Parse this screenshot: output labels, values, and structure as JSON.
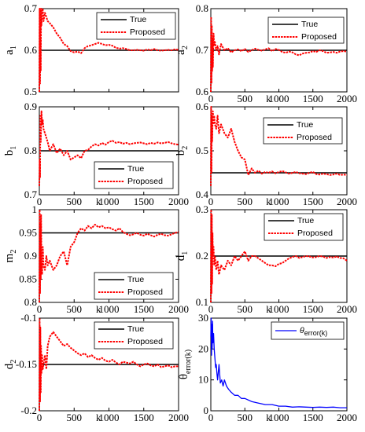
{
  "chart_data": [
    {
      "type": "line",
      "ylabel_main": "a",
      "ylabel_sub": "1",
      "ylim": [
        0.5,
        0.7
      ],
      "yticks": [
        "0.5",
        "0.6",
        "0.7"
      ],
      "xticks": [],
      "xlim": [
        0,
        2000
      ],
      "true_value": 0.6,
      "legend": [
        "True",
        "Proposed"
      ],
      "legend_position": "top-right",
      "series": [
        {
          "name": "Proposed",
          "x": [
            0,
            5,
            10,
            15,
            20,
            25,
            30,
            40,
            50,
            60,
            80,
            100,
            120,
            150,
            200,
            250,
            300,
            350,
            400,
            450,
            500,
            550,
            600,
            650,
            700,
            750,
            800,
            850,
            900,
            950,
            1000,
            1050,
            1100,
            1150,
            1200,
            1250,
            1300,
            1350,
            1400,
            1450,
            1500,
            1550,
            1600,
            1650,
            1700,
            1750,
            1800,
            1850,
            1900,
            1950,
            2000
          ],
          "y": [
            0.5,
            0.7,
            0.52,
            0.68,
            0.55,
            0.7,
            0.66,
            0.69,
            0.7,
            0.67,
            0.69,
            0.68,
            0.67,
            0.665,
            0.655,
            0.64,
            0.63,
            0.615,
            0.61,
            0.598,
            0.595,
            0.597,
            0.593,
            0.605,
            0.61,
            0.612,
            0.615,
            0.618,
            0.615,
            0.612,
            0.613,
            0.611,
            0.606,
            0.604,
            0.605,
            0.603,
            0.6,
            0.6,
            0.601,
            0.6,
            0.599,
            0.602,
            0.6,
            0.603,
            0.6,
            0.599,
            0.6,
            0.601,
            0.6,
            0.602,
            0.601
          ]
        }
      ]
    },
    {
      "type": "line",
      "ylabel_main": "a",
      "ylabel_sub": "2",
      "ylim": [
        0.6,
        0.8
      ],
      "yticks": [
        "0.6",
        "0.7",
        "0.8"
      ],
      "xticks": [
        "0",
        "500",
        "1000",
        "1500",
        "2000"
      ],
      "xlim": [
        0,
        2000
      ],
      "true_value": 0.7,
      "legend": [
        "True",
        "Proposed"
      ],
      "legend_position": "top-right",
      "series": [
        {
          "name": "Proposed",
          "x": [
            0,
            5,
            10,
            15,
            20,
            25,
            30,
            40,
            50,
            60,
            80,
            100,
            120,
            150,
            200,
            250,
            300,
            350,
            400,
            450,
            500,
            550,
            600,
            650,
            700,
            750,
            800,
            850,
            900,
            950,
            1000,
            1050,
            1100,
            1150,
            1200,
            1250,
            1300,
            1350,
            1400,
            1450,
            1500,
            1550,
            1600,
            1650,
            1700,
            1750,
            1800,
            1850,
            1900,
            1950,
            2000
          ],
          "y": [
            0.6,
            0.78,
            0.62,
            0.76,
            0.65,
            0.73,
            0.66,
            0.74,
            0.71,
            0.72,
            0.7,
            0.71,
            0.69,
            0.715,
            0.7,
            0.705,
            0.695,
            0.7,
            0.702,
            0.698,
            0.703,
            0.696,
            0.7,
            0.704,
            0.701,
            0.699,
            0.702,
            0.705,
            0.698,
            0.703,
            0.701,
            0.696,
            0.694,
            0.697,
            0.695,
            0.69,
            0.688,
            0.692,
            0.694,
            0.695,
            0.698,
            0.696,
            0.7,
            0.698,
            0.694,
            0.695,
            0.696,
            0.694,
            0.697,
            0.698,
            0.697
          ]
        }
      ]
    },
    {
      "type": "line",
      "ylabel_main": "b",
      "ylabel_sub": "1",
      "ylim": [
        0.7,
        0.9
      ],
      "yticks": [
        "0.7",
        "0.8",
        "0.9"
      ],
      "xticks": [
        "0",
        "500",
        "1000",
        "1500",
        "2000"
      ],
      "xlim": [
        0,
        2000
      ],
      "true_value": 0.8,
      "legend": [
        "True",
        "Proposed"
      ],
      "legend_position": "bottom-right",
      "series": [
        {
          "name": "Proposed",
          "x": [
            0,
            5,
            10,
            15,
            20,
            30,
            40,
            50,
            60,
            80,
            100,
            120,
            150,
            200,
            250,
            300,
            350,
            400,
            450,
            500,
            550,
            600,
            650,
            700,
            750,
            800,
            850,
            900,
            950,
            1000,
            1050,
            1100,
            1150,
            1200,
            1250,
            1300,
            1350,
            1400,
            1450,
            1500,
            1550,
            1600,
            1650,
            1700,
            1750,
            1800,
            1850,
            1900,
            1950,
            2000
          ],
          "y": [
            0.72,
            0.78,
            0.74,
            0.88,
            0.82,
            0.89,
            0.86,
            0.87,
            0.85,
            0.84,
            0.83,
            0.82,
            0.8,
            0.815,
            0.795,
            0.805,
            0.79,
            0.8,
            0.78,
            0.785,
            0.79,
            0.783,
            0.8,
            0.802,
            0.81,
            0.815,
            0.812,
            0.818,
            0.814,
            0.82,
            0.823,
            0.818,
            0.82,
            0.816,
            0.818,
            0.815,
            0.817,
            0.818,
            0.819,
            0.817,
            0.815,
            0.818,
            0.816,
            0.819,
            0.817,
            0.818,
            0.82,
            0.817,
            0.815,
            0.814
          ]
        }
      ]
    },
    {
      "type": "line",
      "ylabel_main": "b",
      "ylabel_sub": "2",
      "ylim": [
        0.4,
        0.6
      ],
      "yticks": [
        "0.4",
        "0.5",
        "0.6"
      ],
      "xticks": [
        "0",
        "500",
        "1000",
        "1500",
        "2000"
      ],
      "xlim": [
        0,
        2000
      ],
      "true_value": 0.45,
      "legend": [
        "True",
        "Proposed"
      ],
      "legend_position": "center-right",
      "series": [
        {
          "name": "Proposed",
          "x": [
            0,
            5,
            10,
            15,
            20,
            30,
            40,
            50,
            60,
            80,
            100,
            120,
            150,
            200,
            250,
            300,
            350,
            400,
            450,
            500,
            550,
            600,
            650,
            700,
            750,
            800,
            850,
            900,
            950,
            1000,
            1050,
            1100,
            1150,
            1200,
            1250,
            1300,
            1350,
            1400,
            1450,
            1500,
            1550,
            1600,
            1650,
            1700,
            1750,
            1800,
            1850,
            1900,
            1950,
            2000
          ],
          "y": [
            0.42,
            0.6,
            0.45,
            0.58,
            0.52,
            0.59,
            0.56,
            0.58,
            0.56,
            0.55,
            0.58,
            0.54,
            0.56,
            0.54,
            0.53,
            0.55,
            0.52,
            0.5,
            0.485,
            0.48,
            0.445,
            0.46,
            0.45,
            0.455,
            0.448,
            0.452,
            0.45,
            0.453,
            0.449,
            0.452,
            0.454,
            0.451,
            0.448,
            0.45,
            0.452,
            0.449,
            0.448,
            0.447,
            0.45,
            0.452,
            0.447,
            0.446,
            0.448,
            0.447,
            0.445,
            0.446,
            0.448,
            0.445,
            0.446,
            0.445
          ]
        }
      ]
    },
    {
      "type": "line",
      "ylabel_main": "m",
      "ylabel_sub": "2",
      "ylim": [
        0.8,
        1.0
      ],
      "yticks": [
        "0.8",
        "0.85",
        "0.9",
        "0.95",
        "1"
      ],
      "xticks": [
        "0",
        "500",
        "1000",
        "1500",
        "2000"
      ],
      "xlim": [
        0,
        2000
      ],
      "true_value": 0.95,
      "legend": [
        "True",
        "Proposed"
      ],
      "legend_position": "bottom-right",
      "series": [
        {
          "name": "Proposed",
          "x": [
            0,
            5,
            10,
            15,
            20,
            25,
            30,
            40,
            50,
            60,
            80,
            100,
            120,
            150,
            200,
            250,
            300,
            350,
            400,
            450,
            500,
            550,
            600,
            650,
            700,
            750,
            800,
            850,
            900,
            950,
            1000,
            1050,
            1100,
            1150,
            1200,
            1250,
            1300,
            1350,
            1400,
            1450,
            1500,
            1550,
            1600,
            1650,
            1700,
            1750,
            1800,
            1850,
            1900,
            1950,
            2000
          ],
          "y": [
            0.8,
            1.0,
            0.82,
            0.97,
            0.85,
            0.99,
            0.9,
            0.86,
            0.92,
            0.88,
            0.87,
            0.9,
            0.88,
            0.89,
            0.87,
            0.88,
            0.9,
            0.91,
            0.88,
            0.92,
            0.93,
            0.95,
            0.96,
            0.955,
            0.965,
            0.96,
            0.968,
            0.962,
            0.965,
            0.96,
            0.962,
            0.958,
            0.955,
            0.96,
            0.952,
            0.948,
            0.945,
            0.947,
            0.95,
            0.946,
            0.944,
            0.948,
            0.945,
            0.942,
            0.946,
            0.948,
            0.945,
            0.944,
            0.947,
            0.95,
            0.952
          ]
        }
      ]
    },
    {
      "type": "line",
      "ylabel_main": "d",
      "ylabel_sub": "1",
      "ylim": [
        0.1,
        0.3
      ],
      "yticks": [
        "0.1",
        "0.2",
        "0.3"
      ],
      "xticks": [
        "0",
        "500",
        "1000",
        "1500",
        "2000"
      ],
      "xlim": [
        0,
        2000
      ],
      "true_value": 0.2,
      "legend": [
        "True",
        "Proposed"
      ],
      "legend_position": "top-right",
      "series": [
        {
          "name": "Proposed",
          "x": [
            0,
            5,
            10,
            15,
            20,
            25,
            30,
            40,
            50,
            60,
            80,
            100,
            120,
            150,
            200,
            250,
            300,
            350,
            400,
            450,
            500,
            550,
            600,
            650,
            700,
            750,
            800,
            850,
            900,
            950,
            1000,
            1050,
            1100,
            1150,
            1200,
            1250,
            1300,
            1350,
            1400,
            1450,
            1500,
            1550,
            1600,
            1650,
            1700,
            1750,
            1800,
            1850,
            1900,
            1950,
            2000
          ],
          "y": [
            0.1,
            0.3,
            0.12,
            0.29,
            0.14,
            0.25,
            0.2,
            0.22,
            0.18,
            0.2,
            0.17,
            0.19,
            0.16,
            0.18,
            0.17,
            0.19,
            0.18,
            0.2,
            0.19,
            0.2,
            0.21,
            0.19,
            0.2,
            0.2,
            0.195,
            0.19,
            0.185,
            0.18,
            0.18,
            0.178,
            0.183,
            0.185,
            0.19,
            0.195,
            0.198,
            0.2,
            0.196,
            0.198,
            0.2,
            0.199,
            0.197,
            0.198,
            0.2,
            0.199,
            0.196,
            0.198,
            0.197,
            0.199,
            0.196,
            0.195,
            0.19
          ]
        }
      ]
    },
    {
      "type": "line",
      "ylabel_main": "d",
      "ylabel_sub": "2",
      "ylim": [
        -0.2,
        -0.1
      ],
      "yticks": [
        "-0.2",
        "-0.15",
        "-0.1"
      ],
      "xticks": [
        "0",
        "500",
        "1000",
        "1500",
        "2000"
      ],
      "xlim": [
        0,
        2000
      ],
      "true_value": -0.15,
      "legend": [
        "True",
        "Proposed"
      ],
      "legend_position": "top-right",
      "series": [
        {
          "name": "Proposed",
          "x": [
            0,
            5,
            10,
            15,
            20,
            25,
            30,
            40,
            50,
            60,
            80,
            100,
            120,
            150,
            200,
            250,
            300,
            350,
            400,
            450,
            500,
            550,
            600,
            650,
            700,
            750,
            800,
            850,
            900,
            950,
            1000,
            1050,
            1100,
            1150,
            1200,
            1250,
            1300,
            1350,
            1400,
            1450,
            1500,
            1550,
            1600,
            1650,
            1700,
            1750,
            1800,
            1850,
            1900,
            1950,
            2000
          ],
          "y": [
            -0.2,
            -0.1,
            -0.19,
            -0.11,
            -0.18,
            -0.13,
            -0.16,
            -0.14,
            -0.155,
            -0.15,
            -0.14,
            -0.155,
            -0.13,
            -0.12,
            -0.115,
            -0.12,
            -0.125,
            -0.13,
            -0.128,
            -0.132,
            -0.135,
            -0.138,
            -0.14,
            -0.138,
            -0.142,
            -0.14,
            -0.143,
            -0.145,
            -0.143,
            -0.146,
            -0.147,
            -0.145,
            -0.148,
            -0.15,
            -0.147,
            -0.148,
            -0.149,
            -0.147,
            -0.15,
            -0.152,
            -0.15,
            -0.149,
            -0.151,
            -0.152,
            -0.15,
            -0.153,
            -0.152,
            -0.151,
            -0.153,
            -0.152,
            -0.152
          ]
        }
      ]
    },
    {
      "type": "line",
      "ylabel_main": "θ",
      "ylabel_sub": "error(k)",
      "ylim": [
        0,
        30
      ],
      "yticks": [
        "0",
        "10",
        "20",
        "30"
      ],
      "xticks": [
        "0",
        "500",
        "1000",
        "1500",
        "2000"
      ],
      "xlim": [
        0,
        2000
      ],
      "legend": [
        "θerror(k)"
      ],
      "legend_position": "top-right",
      "series": [
        {
          "name": "θerror(k)",
          "x": [
            0,
            5,
            10,
            15,
            20,
            25,
            30,
            40,
            50,
            60,
            70,
            80,
            90,
            100,
            120,
            140,
            160,
            180,
            200,
            230,
            260,
            300,
            350,
            400,
            450,
            500,
            600,
            700,
            800,
            900,
            1000,
            1100,
            1200,
            1300,
            1400,
            1500,
            1600,
            1700,
            1800,
            1900,
            2000
          ],
          "y": [
            24,
            30,
            18,
            28,
            20,
            29,
            22,
            25,
            20,
            17,
            14,
            15,
            12,
            10,
            15,
            9,
            10,
            8,
            10,
            8,
            7,
            6,
            5,
            5,
            4,
            4,
            3,
            2.5,
            2,
            2,
            1.5,
            1.5,
            1.2,
            1.3,
            1.2,
            1.1,
            1.2,
            1.1,
            1.2,
            1,
            1
          ]
        }
      ]
    }
  ],
  "x_axis_label": "k",
  "colors": {
    "true_line": "#000000",
    "proposed_line": "#ff0000",
    "error_line": "#0000ff"
  }
}
